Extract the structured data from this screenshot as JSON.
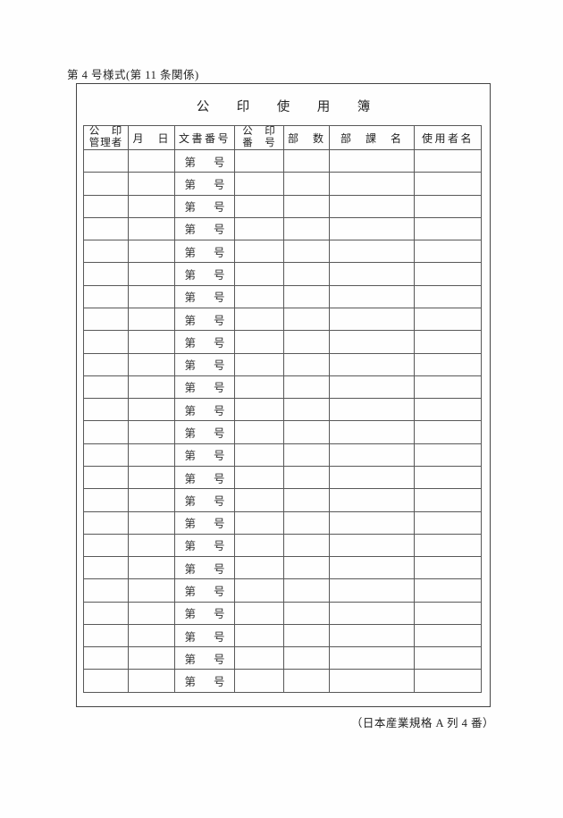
{
  "page": {
    "form_caption": "第 4 号様式(第 11 条関係)",
    "footer_note": "（日本産業規格 A 列 4 番）"
  },
  "form": {
    "title": "公　印　使　用　簿",
    "table": {
      "columns": [
        {
          "key": "seal_manager",
          "label_line1": "公　印",
          "label_line2": "管理者"
        },
        {
          "key": "month_day",
          "label": "月　日"
        },
        {
          "key": "document_number",
          "label": "文書番号"
        },
        {
          "key": "seal_number",
          "label_line1": "公　印",
          "label_line2": "番　号"
        },
        {
          "key": "copies",
          "label": "部　数"
        },
        {
          "key": "department",
          "label": "部　課　名"
        },
        {
          "key": "user_name",
          "label": "使用者名"
        }
      ],
      "row_count": 24,
      "row_template": {
        "document_number_prefix": "第",
        "document_number_suffix": "号"
      }
    }
  }
}
